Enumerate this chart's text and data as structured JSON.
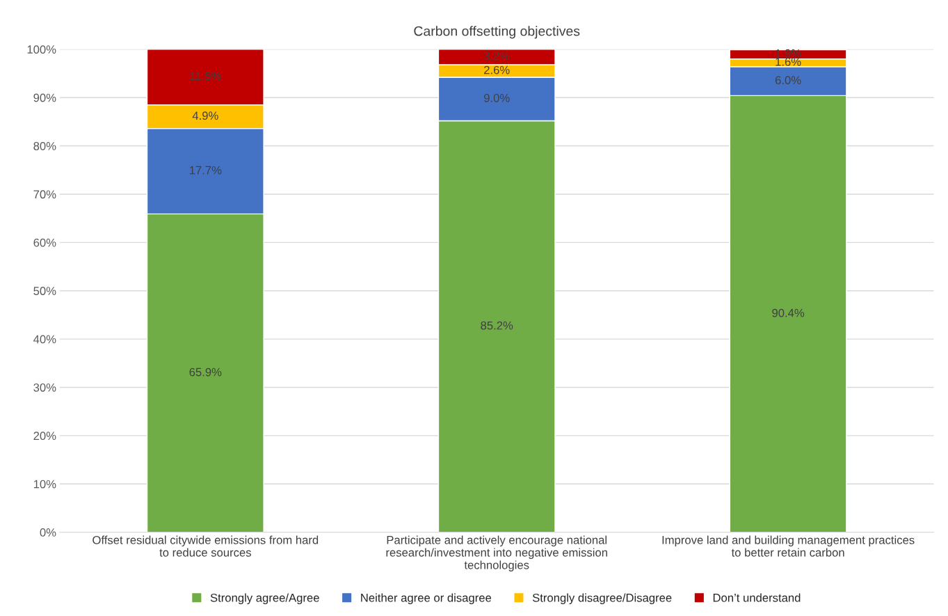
{
  "chart_data": {
    "type": "bar",
    "stacked": true,
    "title": "Carbon offsetting objectives",
    "categories": [
      "Offset residual citywide emissions from hard to reduce sources",
      "Participate and actively encourage national research/investment into negative emission technologies",
      "Improve land and building management practices to better retain carbon"
    ],
    "series": [
      {
        "name": "Strongly agree/Agree",
        "color": "#70ad47",
        "values": [
          65.9,
          85.2,
          90.4
        ],
        "value_labels": [
          "65.9%",
          "85.2%",
          "90.4%"
        ]
      },
      {
        "name": "Neither agree or disagree",
        "color": "#4472c4",
        "values": [
          17.7,
          9.0,
          6.0
        ],
        "value_labels": [
          "17.7%",
          "9.0%",
          "6.0%"
        ]
      },
      {
        "name": "Strongly disagree/Disagree",
        "color": "#ffc000",
        "values": [
          4.9,
          2.6,
          1.6
        ],
        "value_labels": [
          "4.9%",
          "2.6%",
          "1.6%"
        ]
      },
      {
        "name": "Don’t understand",
        "color": "#c00000",
        "values": [
          11.5,
          3.2,
          1.9
        ],
        "value_labels": [
          "11.5%",
          "3.2%",
          "1.9%"
        ]
      }
    ],
    "ylim": [
      0,
      100
    ],
    "yticks": [
      {
        "value": 0,
        "label": "0%"
      },
      {
        "value": 10,
        "label": "10%"
      },
      {
        "value": 20,
        "label": "20%"
      },
      {
        "value": 30,
        "label": "30%"
      },
      {
        "value": 40,
        "label": "40%"
      },
      {
        "value": 50,
        "label": "50%"
      },
      {
        "value": 60,
        "label": "60%"
      },
      {
        "value": 70,
        "label": "70%"
      },
      {
        "value": 80,
        "label": "80%"
      },
      {
        "value": 90,
        "label": "90%"
      },
      {
        "value": 100,
        "label": "100%"
      }
    ],
    "grid": "y",
    "legend": "bottom"
  }
}
